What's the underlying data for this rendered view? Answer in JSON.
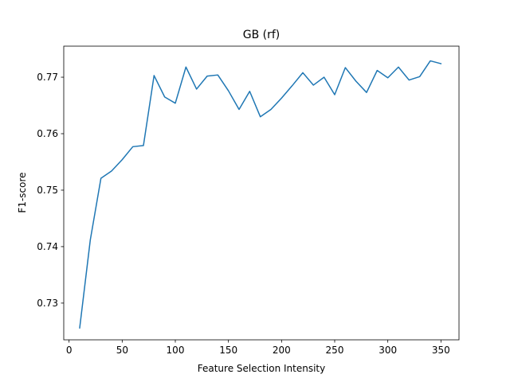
{
  "chart_data": {
    "type": "line",
    "title": "GB (rf)",
    "xlabel": "Feature Selection Intensity",
    "ylabel": "F1-score",
    "xlim": [
      -5,
      367
    ],
    "ylim": [
      0.7235,
      0.7755
    ],
    "xticks": [
      0,
      50,
      100,
      150,
      200,
      250,
      300,
      350
    ],
    "yticks": [
      0.73,
      0.74,
      0.75,
      0.76,
      0.77
    ],
    "xtick_labels": [
      "0",
      "50",
      "100",
      "150",
      "200",
      "250",
      "300",
      "350"
    ],
    "ytick_labels": [
      "0.73",
      "0.74",
      "0.75",
      "0.76",
      "0.77"
    ],
    "grid": false,
    "line_color": "#1f77b4",
    "series": [
      {
        "x": [
          10,
          20,
          30,
          40,
          50,
          60,
          70,
          80,
          90,
          100,
          110,
          120,
          130,
          140,
          150,
          160,
          170,
          180,
          190,
          200,
          210,
          220,
          230,
          240,
          250,
          260,
          270,
          280,
          290,
          300,
          310,
          320,
          330,
          340,
          350
        ],
        "values": [
          0.7256,
          0.7412,
          0.7521,
          0.7534,
          0.7554,
          0.7577,
          0.7579,
          0.7703,
          0.7665,
          0.7654,
          0.7718,
          0.7679,
          0.7702,
          0.7704,
          0.7676,
          0.7643,
          0.7675,
          0.763,
          0.7643,
          0.7663,
          0.7685,
          0.7708,
          0.7686,
          0.77,
          0.7669,
          0.7717,
          0.7693,
          0.7673,
          0.7712,
          0.7699,
          0.7718,
          0.7695,
          0.7701,
          0.7729,
          0.7724
        ]
      }
    ]
  }
}
